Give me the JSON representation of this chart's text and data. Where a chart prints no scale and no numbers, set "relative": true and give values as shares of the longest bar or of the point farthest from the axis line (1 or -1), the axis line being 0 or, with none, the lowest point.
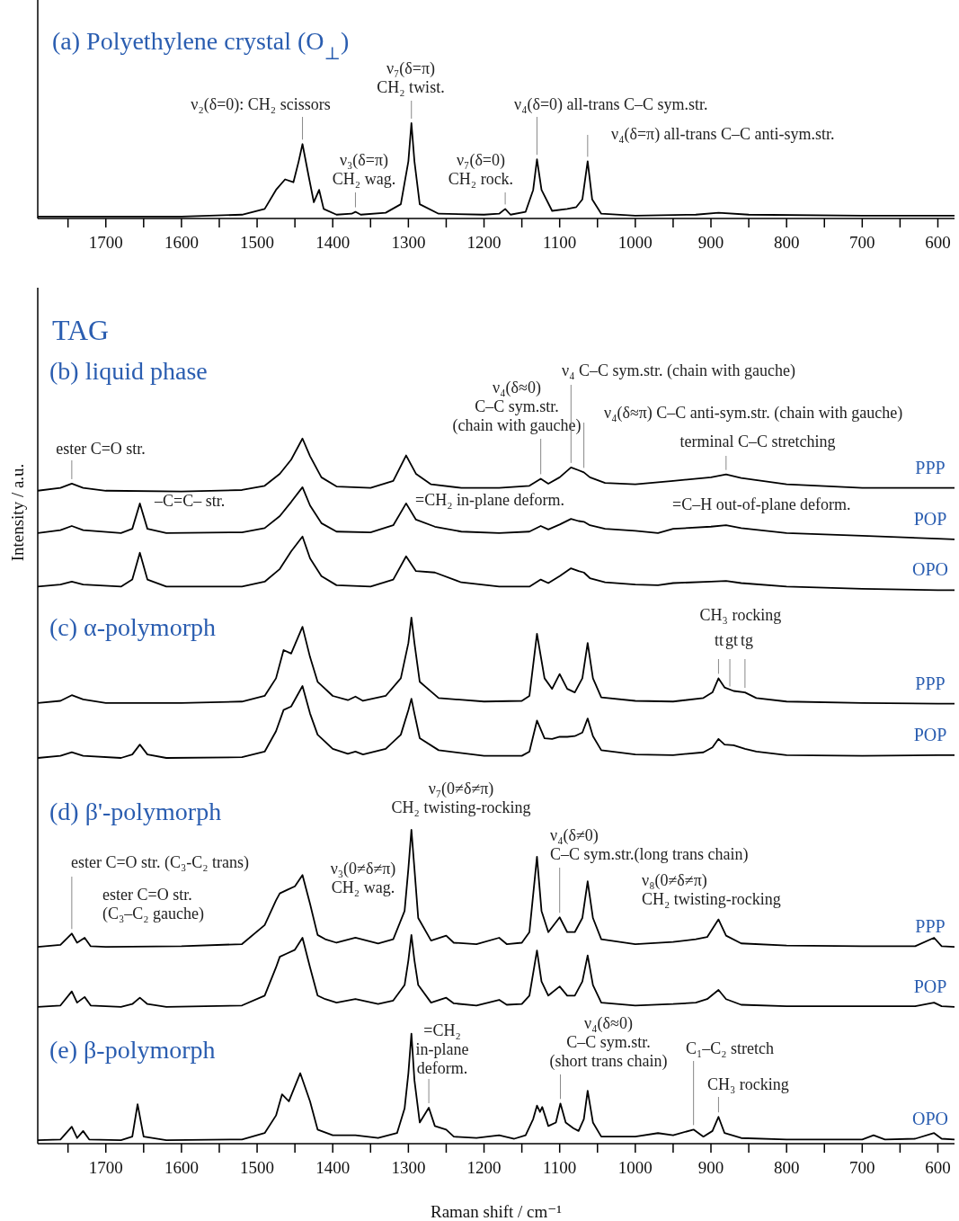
{
  "chart_data": [
    {
      "type": "line",
      "title": "(a) Polyethylene crystal (O$_{⊥}$)",
      "relative": true,
      "xlim": [
        1790,
        578
      ],
      "xticks": [
        {
          "value": 1750,
          "label": null
        },
        1700,
        {
          "value": 1650,
          "label": null
        },
        1600,
        {
          "value": 1550,
          "label": null
        },
        1500,
        {
          "value": 1450,
          "label": null
        },
        1400,
        {
          "value": 1350,
          "label": null
        },
        1300,
        {
          "value": 1250,
          "label": null
        },
        1200,
        {
          "value": 1150,
          "label": null
        },
        1100,
        {
          "value": 1050,
          "label": null
        },
        1000,
        {
          "value": 950,
          "label": null
        },
        900,
        {
          "value": 850,
          "label": null
        },
        800,
        {
          "value": 750,
          "label": null
        },
        700,
        {
          "value": 650,
          "label": null
        },
        600
      ],
      "series": [
        {
          "color": "#000000",
          "x": [
            1790,
            1600,
            1520,
            1490,
            1475,
            1463,
            1452,
            1445,
            1440,
            1432,
            1425,
            1418,
            1412,
            1395,
            1375,
            1370,
            1363,
            1330,
            1310,
            1300,
            1296,
            1292,
            1285,
            1260,
            1200,
            1180,
            1172,
            1165,
            1145,
            1135,
            1130,
            1124,
            1110,
            1090,
            1078,
            1070,
            1063,
            1057,
            1045,
            1000,
            920,
            890,
            850,
            700,
            578
          ],
          "values": [
            0.02,
            0.02,
            0.04,
            0.1,
            0.3,
            0.41,
            0.38,
            0.6,
            0.78,
            0.45,
            0.17,
            0.3,
            0.1,
            0.04,
            0.05,
            0.07,
            0.04,
            0.06,
            0.15,
            0.6,
            1.0,
            0.6,
            0.15,
            0.05,
            0.04,
            0.05,
            0.1,
            0.04,
            0.07,
            0.3,
            0.62,
            0.3,
            0.08,
            0.1,
            0.12,
            0.2,
            0.6,
            0.2,
            0.05,
            0.03,
            0.04,
            0.06,
            0.04,
            0.03,
            0.03
          ]
        }
      ],
      "annotations": [
        {
          "text": "ν₂(δ=0): CH₂ scissors",
          "x": 1440,
          "y": 0.78
        },
        {
          "text": "ν₇(δ=π)\nCH₂ twist.",
          "x": 1296,
          "y": 1.0
        },
        {
          "text": "ν₃(δ=π)\nCH₂ wag.",
          "x": 1370,
          "y": 0.07
        },
        {
          "text": "ν₇(δ=0)\nCH₂ rock.",
          "x": 1172,
          "y": 0.1
        },
        {
          "text": "ν₄(δ=0) all-trans C–C sym.str.",
          "x": 1130,
          "y": 0.62
        },
        {
          "text": "ν₄(δ=π) all-trans C–C anti-sym.str.",
          "x": 1063,
          "y": 0.6
        }
      ]
    },
    {
      "type": "line",
      "relative": true,
      "ylabel": "Intensity / a.u.",
      "xlabel": "Raman shift / cm⁻¹",
      "xlim": [
        1790,
        578
      ],
      "xticks": [
        {
          "value": 1750,
          "label": null
        },
        1700,
        {
          "value": 1650,
          "label": null
        },
        1600,
        {
          "value": 1550,
          "label": null
        },
        1500,
        {
          "value": 1450,
          "label": null
        },
        1400,
        {
          "value": 1350,
          "label": null
        },
        1300,
        {
          "value": 1250,
          "label": null
        },
        1200,
        {
          "value": 1150,
          "label": null
        },
        1100,
        {
          "value": 1050,
          "label": null
        },
        1000,
        {
          "value": 950,
          "label": null
        },
        900,
        {
          "value": 850,
          "label": null
        },
        800,
        {
          "value": 750,
          "label": null
        },
        700,
        {
          "value": 650,
          "label": null
        },
        600
      ],
      "series": [
        {
          "name": "PPP",
          "color": "#000000",
          "x": [
            1790,
            1760,
            1745,
            1730,
            1700,
            1600,
            1520,
            1490,
            1470,
            1455,
            1440,
            1430,
            1415,
            1395,
            1350,
            1320,
            1303,
            1290,
            1270,
            1230,
            1180,
            1140,
            1125,
            1115,
            1100,
            1085,
            1075,
            1068,
            1060,
            1040,
            1000,
            950,
            900,
            880,
            860,
            800,
            700,
            600,
            578
          ],
          "values": [
            0.926,
            0.93,
            0.936,
            0.93,
            0.926,
            0.925,
            0.927,
            0.933,
            0.95,
            0.97,
            1.0,
            0.975,
            0.945,
            0.932,
            0.93,
            0.94,
            0.976,
            0.95,
            0.935,
            0.93,
            0.93,
            0.933,
            0.943,
            0.936,
            0.945,
            0.959,
            0.955,
            0.952,
            0.945,
            0.937,
            0.935,
            0.94,
            0.945,
            0.949,
            0.944,
            0.935,
            0.93,
            0.93,
            0.93
          ]
        },
        {
          "name": "POP",
          "color": "#000000",
          "x": [
            1790,
            1760,
            1745,
            1730,
            1680,
            1665,
            1655,
            1645,
            1620,
            1520,
            1490,
            1470,
            1455,
            1440,
            1430,
            1415,
            1395,
            1350,
            1320,
            1303,
            1290,
            1265,
            1230,
            1180,
            1140,
            1125,
            1115,
            1100,
            1085,
            1075,
            1068,
            1060,
            1040,
            1000,
            970,
            950,
            900,
            880,
            860,
            800,
            700,
            600,
            578
          ],
          "values": [
            0.866,
            0.87,
            0.876,
            0.87,
            0.866,
            0.872,
            0.908,
            0.872,
            0.866,
            0.867,
            0.873,
            0.89,
            0.91,
            0.931,
            0.905,
            0.88,
            0.868,
            0.867,
            0.877,
            0.908,
            0.885,
            0.875,
            0.868,
            0.866,
            0.868,
            0.876,
            0.871,
            0.878,
            0.886,
            0.883,
            0.882,
            0.877,
            0.872,
            0.869,
            0.866,
            0.872,
            0.875,
            0.877,
            0.873,
            0.866,
            0.862,
            0.858,
            0.857
          ]
        },
        {
          "name": "OPO",
          "color": "#000000",
          "x": [
            1790,
            1760,
            1745,
            1730,
            1680,
            1665,
            1655,
            1645,
            1620,
            1520,
            1490,
            1470,
            1455,
            1440,
            1430,
            1415,
            1395,
            1350,
            1320,
            1303,
            1290,
            1265,
            1230,
            1180,
            1140,
            1125,
            1115,
            1100,
            1085,
            1075,
            1068,
            1060,
            1040,
            1000,
            970,
            950,
            900,
            880,
            860,
            800,
            700,
            600,
            578
          ],
          "values": [
            0.79,
            0.793,
            0.797,
            0.793,
            0.79,
            0.8,
            0.838,
            0.8,
            0.79,
            0.79,
            0.797,
            0.815,
            0.84,
            0.861,
            0.83,
            0.805,
            0.792,
            0.79,
            0.8,
            0.833,
            0.812,
            0.81,
            0.796,
            0.79,
            0.79,
            0.8,
            0.795,
            0.805,
            0.816,
            0.812,
            0.81,
            0.802,
            0.796,
            0.793,
            0.792,
            0.795,
            0.797,
            0.798,
            0.795,
            0.79,
            0.787,
            0.785,
            0.785
          ]
        },
        {
          "name": "PPP",
          "color": "#000000",
          "x": [
            1790,
            1760,
            1745,
            1730,
            1700,
            1600,
            1520,
            1490,
            1475,
            1465,
            1455,
            1440,
            1430,
            1420,
            1400,
            1380,
            1370,
            1360,
            1330,
            1310,
            1300,
            1296,
            1292,
            1285,
            1260,
            1200,
            1150,
            1140,
            1130,
            1120,
            1110,
            1100,
            1090,
            1080,
            1070,
            1063,
            1056,
            1045,
            1000,
            950,
            910,
            898,
            890,
            882,
            870,
            855,
            840,
            800,
            700,
            600,
            578
          ],
          "values": [
            0.625,
            0.628,
            0.636,
            0.63,
            0.625,
            0.625,
            0.627,
            0.635,
            0.66,
            0.7,
            0.695,
            0.733,
            0.69,
            0.655,
            0.635,
            0.629,
            0.634,
            0.628,
            0.635,
            0.66,
            0.71,
            0.746,
            0.71,
            0.655,
            0.632,
            0.627,
            0.628,
            0.635,
            0.723,
            0.66,
            0.645,
            0.666,
            0.645,
            0.64,
            0.66,
            0.71,
            0.66,
            0.633,
            0.628,
            0.627,
            0.632,
            0.64,
            0.66,
            0.647,
            0.642,
            0.64,
            0.632,
            0.627,
            0.625,
            0.624,
            0.624
          ]
        },
        {
          "name": "POP",
          "color": "#000000",
          "x": [
            1790,
            1760,
            1745,
            1730,
            1680,
            1665,
            1655,
            1645,
            1620,
            1520,
            1490,
            1475,
            1465,
            1455,
            1440,
            1430,
            1420,
            1400,
            1380,
            1370,
            1360,
            1330,
            1310,
            1300,
            1296,
            1292,
            1285,
            1260,
            1200,
            1150,
            1140,
            1130,
            1120,
            1110,
            1100,
            1090,
            1080,
            1070,
            1063,
            1056,
            1045,
            1000,
            950,
            910,
            898,
            890,
            882,
            870,
            855,
            840,
            800,
            700,
            600,
            578
          ],
          "values": [
            0.547,
            0.55,
            0.555,
            0.55,
            0.547,
            0.552,
            0.566,
            0.552,
            0.547,
            0.548,
            0.556,
            0.585,
            0.615,
            0.62,
            0.649,
            0.61,
            0.58,
            0.56,
            0.553,
            0.556,
            0.552,
            0.56,
            0.58,
            0.615,
            0.631,
            0.61,
            0.575,
            0.558,
            0.55,
            0.55,
            0.556,
            0.6,
            0.575,
            0.574,
            0.577,
            0.577,
            0.578,
            0.583,
            0.603,
            0.578,
            0.558,
            0.552,
            0.551,
            0.555,
            0.562,
            0.574,
            0.566,
            0.565,
            0.56,
            0.556,
            0.551,
            0.55,
            0.551,
            0.551
          ]
        },
        {
          "name": "PPP",
          "color": "#000000",
          "x": [
            1790,
            1760,
            1745,
            1738,
            1728,
            1720,
            1700,
            1600,
            1520,
            1490,
            1475,
            1470,
            1460,
            1450,
            1440,
            1430,
            1420,
            1410,
            1395,
            1370,
            1340,
            1320,
            1305,
            1300,
            1296,
            1292,
            1287,
            1270,
            1250,
            1240,
            1210,
            1180,
            1170,
            1150,
            1140,
            1130,
            1124,
            1115,
            1100,
            1090,
            1080,
            1070,
            1063,
            1056,
            1045,
            1000,
            950,
            920,
            905,
            890,
            880,
            860,
            800,
            700,
            630,
            605,
            595,
            578
          ],
          "values": [
            0.279,
            0.282,
            0.298,
            0.285,
            0.292,
            0.28,
            0.279,
            0.28,
            0.283,
            0.31,
            0.345,
            0.355,
            0.36,
            0.365,
            0.381,
            0.34,
            0.296,
            0.29,
            0.285,
            0.292,
            0.284,
            0.29,
            0.33,
            0.39,
            0.445,
            0.39,
            0.32,
            0.288,
            0.295,
            0.285,
            0.283,
            0.292,
            0.283,
            0.285,
            0.3,
            0.407,
            0.33,
            0.3,
            0.321,
            0.3,
            0.3,
            0.32,
            0.372,
            0.32,
            0.29,
            0.283,
            0.286,
            0.29,
            0.293,
            0.318,
            0.295,
            0.284,
            0.281,
            0.28,
            0.28,
            0.292,
            0.28,
            0.279
          ]
        },
        {
          "name": "POP",
          "color": "#000000",
          "x": [
            1790,
            1760,
            1745,
            1738,
            1728,
            1720,
            1680,
            1665,
            1655,
            1645,
            1620,
            1520,
            1490,
            1475,
            1470,
            1460,
            1450,
            1440,
            1430,
            1420,
            1410,
            1395,
            1370,
            1340,
            1320,
            1305,
            1300,
            1296,
            1292,
            1287,
            1270,
            1250,
            1240,
            1210,
            1180,
            1170,
            1150,
            1140,
            1130,
            1124,
            1115,
            1100,
            1090,
            1080,
            1070,
            1063,
            1056,
            1045,
            1000,
            950,
            920,
            905,
            890,
            880,
            860,
            800,
            700,
            630,
            605,
            595,
            578
          ],
          "values": [
            0.194,
            0.196,
            0.216,
            0.2,
            0.208,
            0.196,
            0.194,
            0.198,
            0.207,
            0.198,
            0.194,
            0.196,
            0.21,
            0.25,
            0.265,
            0.27,
            0.275,
            0.292,
            0.25,
            0.21,
            0.205,
            0.2,
            0.205,
            0.198,
            0.203,
            0.225,
            0.26,
            0.296,
            0.26,
            0.225,
            0.2,
            0.207,
            0.199,
            0.196,
            0.204,
            0.197,
            0.198,
            0.21,
            0.274,
            0.23,
            0.21,
            0.223,
            0.21,
            0.21,
            0.23,
            0.267,
            0.225,
            0.2,
            0.196,
            0.198,
            0.2,
            0.205,
            0.218,
            0.205,
            0.197,
            0.195,
            0.195,
            0.195,
            0.2,
            0.195,
            0.194
          ]
        },
        {
          "name": "OPO",
          "color": "#000000",
          "x": [
            1790,
            1760,
            1745,
            1738,
            1730,
            1722,
            1680,
            1665,
            1658,
            1650,
            1620,
            1520,
            1490,
            1475,
            1467,
            1458,
            1443,
            1430,
            1420,
            1400,
            1370,
            1340,
            1315,
            1305,
            1300,
            1296,
            1292,
            1285,
            1273,
            1265,
            1250,
            1240,
            1210,
            1180,
            1160,
            1145,
            1135,
            1130,
            1126,
            1123,
            1115,
            1105,
            1099,
            1092,
            1082,
            1075,
            1068,
            1063,
            1056,
            1045,
            1000,
            970,
            950,
            923,
            910,
            898,
            890,
            882,
            860,
            800,
            700,
            685,
            670,
            630,
            605,
            595,
            578
          ],
          "values": [
            0.005,
            0.006,
            0.024,
            0.008,
            0.018,
            0.006,
            0.005,
            0.01,
            0.056,
            0.01,
            0.005,
            0.006,
            0.015,
            0.04,
            0.07,
            0.06,
            0.1,
            0.06,
            0.02,
            0.012,
            0.012,
            0.008,
            0.015,
            0.05,
            0.1,
            0.156,
            0.09,
            0.03,
            0.051,
            0.025,
            0.02,
            0.01,
            0.008,
            0.012,
            0.007,
            0.012,
            0.035,
            0.054,
            0.045,
            0.052,
            0.025,
            0.03,
            0.057,
            0.03,
            0.022,
            0.018,
            0.035,
            0.075,
            0.03,
            0.01,
            0.01,
            0.015,
            0.012,
            0.02,
            0.01,
            0.018,
            0.038,
            0.015,
            0.008,
            0.006,
            0.006,
            0.012,
            0.006,
            0.007,
            0.015,
            0.007,
            0.006
          ]
        }
      ],
      "annotations": [
        "TAG",
        "(b) liquid phase",
        "(c) α-polymorph",
        "(d) β'-polymorph",
        "(e) β-polymorph",
        "CH₃ rocking",
        "ν₇(0≠δ≠π)\nCH₂ twisting-rocking",
        {
          "text": "ester C=O str.",
          "x": 1745,
          "y": 0.936
        },
        {
          "text": "ν₄(δ≈0)\nC–C sym.str.\n(chain with gauche)",
          "x": 1125,
          "y": 0.943
        },
        {
          "text": "ν₄  C–C sym.str. (chain with gauche)",
          "x": 1085,
          "y": 0.959
        },
        {
          "text": "ν₄(δ≈π) C–C anti-sym.str. (chain with gauche)",
          "x": 1068,
          "y": 0.952
        },
        {
          "text": "terminal C–C stretching",
          "x": 880,
          "y": 0.949
        },
        {
          "text": "–C=C– str.",
          "x": 1655,
          "y": 0.908
        },
        {
          "text": "=CH₂ in-plane deform.",
          "x": 1265,
          "y": 0.875
        },
        {
          "text": "=C–H out-of-plane deform.",
          "x": 970,
          "y": 0.866
        },
        {
          "text": "tt",
          "x": 890,
          "y": 0.66
        },
        {
          "text": "gt",
          "x": 875,
          "y": 0.642
        },
        {
          "text": "tg",
          "x": 855,
          "y": 0.64
        },
        {
          "text": "ester C=O str. (C₃-C₂ trans)",
          "x": 1745,
          "y": 0.298
        },
        {
          "text": "ester C=O str.\n(C₃–C₂ gauche)",
          "x": 1728,
          "y": 0.292
        },
        {
          "text": "ν₃(0≠δ≠π)\nCH₂ wag.",
          "x": 1320,
          "y": 0.29
        },
        {
          "text": "ν₄(δ≠0)\nC–C sym.str.(long trans chain)",
          "x": 1100,
          "y": 0.321
        },
        {
          "text": "ν₈(0≠δ≠π)\nCH₂ twisting-rocking",
          "x": 960,
          "y": 0.286
        },
        {
          "text": "=CH₂\nin-plane\ndeform.",
          "x": 1273,
          "y": 0.051
        },
        {
          "text": "ν₄(δ≈0)\nC–C sym.str.\n(short trans chain)",
          "x": 1099,
          "y": 0.057
        },
        {
          "text": "C₁–C₂ stretch",
          "x": 923,
          "y": 0.02
        },
        {
          "text": "CH₃ rocking",
          "x": 890,
          "y": 0.038
        }
      ]
    }
  ]
}
